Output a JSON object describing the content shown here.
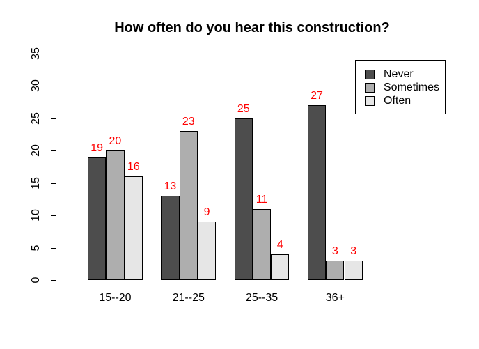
{
  "chart_data": {
    "type": "bar",
    "grouped": true,
    "title": "How often do you hear this construction?",
    "xlabel": "",
    "ylabel": "",
    "categories": [
      "15--20",
      "21--25",
      "25--35",
      "36+"
    ],
    "series": [
      {
        "name": "Never",
        "color": "#4D4D4D",
        "values": [
          19,
          13,
          25,
          27
        ]
      },
      {
        "name": "Sometimes",
        "color": "#AEAEAE",
        "values": [
          20,
          23,
          11,
          3
        ]
      },
      {
        "name": "Often",
        "color": "#E6E6E6",
        "values": [
          16,
          9,
          4,
          3
        ]
      }
    ],
    "value_labels": {
      "visible": true,
      "color": "#FF0000"
    },
    "bar_border_color": "#000000",
    "ylim": [
      0,
      35
    ],
    "yticks": [
      0,
      5,
      10,
      15,
      20,
      25,
      30,
      35
    ],
    "grid": false,
    "legend": {
      "position": "top-right",
      "entries": [
        "Never",
        "Sometimes",
        "Often"
      ]
    },
    "background": "#FFFFFF",
    "axis_color": "#000000",
    "text_color": "#000000"
  }
}
